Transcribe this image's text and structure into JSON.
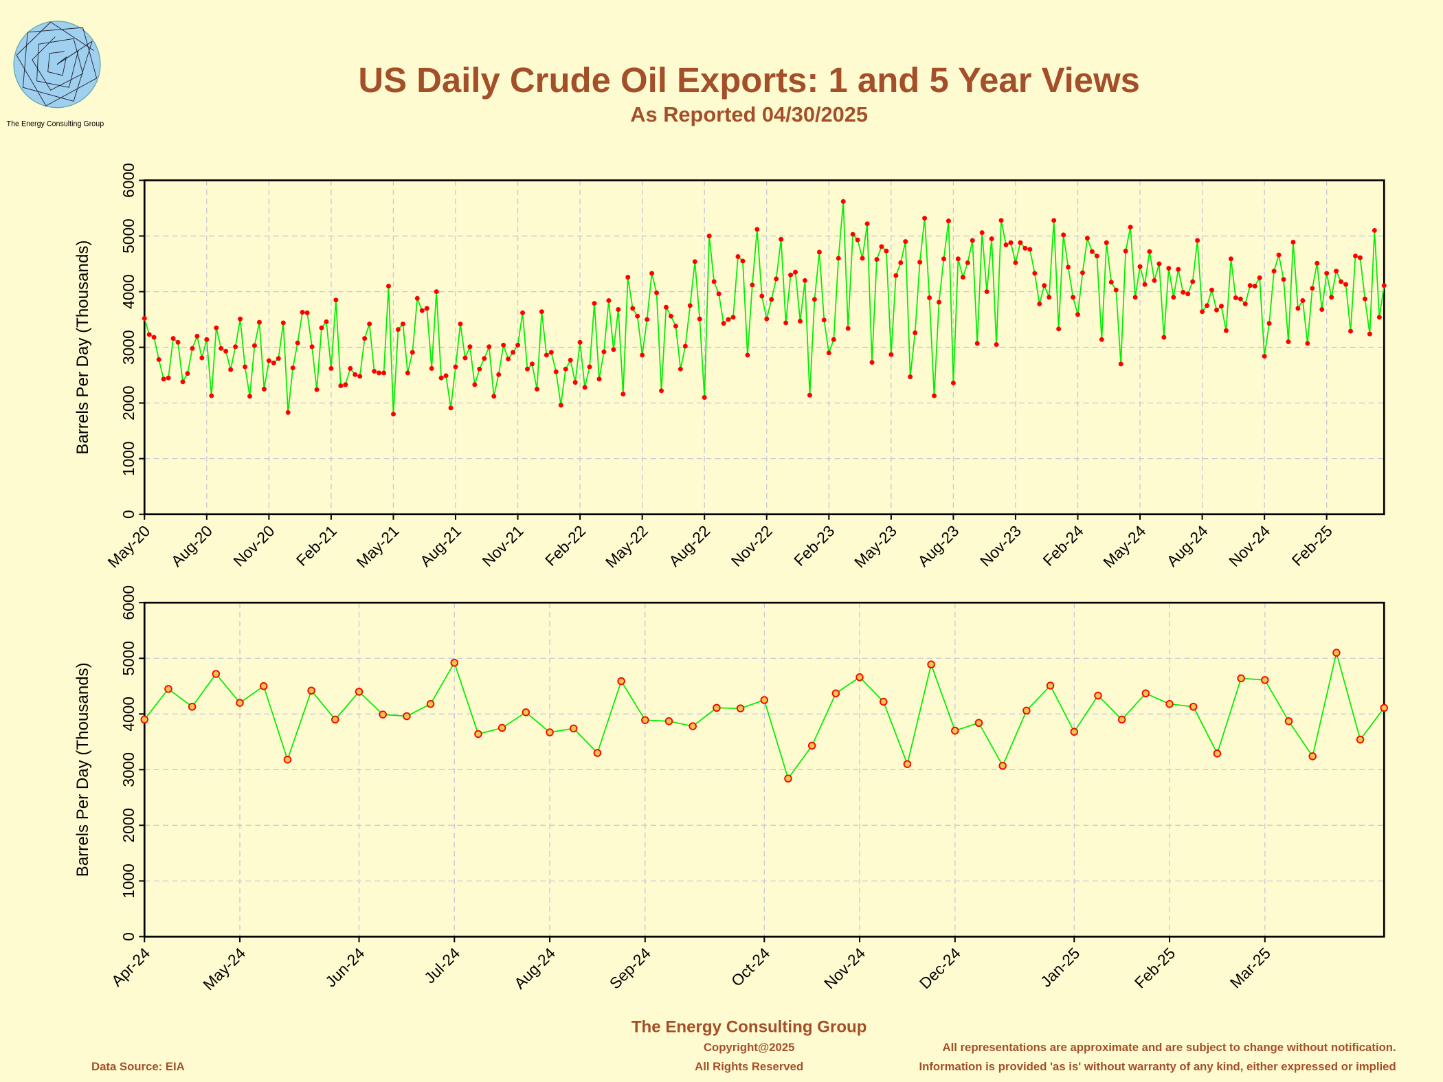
{
  "header": {
    "title": "US Daily Crude Oil Exports: 1 and 5 Year Views",
    "subtitle": "As Reported 04/30/2025",
    "logo_text": "The Energy Consulting Group"
  },
  "chart_data": [
    {
      "type": "line",
      "ylabel": "Barrels Per Day (Thousands)",
      "color": "#00ee00",
      "marker_color": "#ff0000",
      "grid": true,
      "ylim": [
        0,
        6000
      ],
      "yticks": [
        0,
        1000,
        2000,
        3000,
        4000,
        5000,
        6000
      ],
      "categories": [
        "May-20",
        null,
        null,
        null,
        null,
        null,
        null,
        null,
        null,
        null,
        null,
        null,
        null,
        "Aug-20",
        null,
        null,
        null,
        null,
        null,
        null,
        null,
        null,
        null,
        null,
        null,
        null,
        "Nov-20",
        null,
        null,
        null,
        null,
        null,
        null,
        null,
        null,
        null,
        null,
        null,
        null,
        "Feb-21",
        null,
        null,
        null,
        null,
        null,
        null,
        null,
        null,
        null,
        null,
        null,
        null,
        "May-21",
        null,
        null,
        null,
        null,
        null,
        null,
        null,
        null,
        null,
        null,
        null,
        null,
        "Aug-21",
        null,
        null,
        null,
        null,
        null,
        null,
        null,
        null,
        null,
        null,
        null,
        null,
        "Nov-21",
        null,
        null,
        null,
        null,
        null,
        null,
        null,
        null,
        null,
        null,
        null,
        null,
        "Feb-22",
        null,
        null,
        null,
        null,
        null,
        null,
        null,
        null,
        null,
        null,
        null,
        null,
        "May-22",
        null,
        null,
        null,
        null,
        null,
        null,
        null,
        null,
        null,
        null,
        null,
        null,
        "Aug-22",
        null,
        null,
        null,
        null,
        null,
        null,
        null,
        null,
        null,
        null,
        null,
        null,
        "Nov-22",
        null,
        null,
        null,
        null,
        null,
        null,
        null,
        null,
        null,
        null,
        null,
        null,
        "Feb-23",
        null,
        null,
        null,
        null,
        null,
        null,
        null,
        null,
        null,
        null,
        null,
        null,
        "May-23",
        null,
        null,
        null,
        null,
        null,
        null,
        null,
        null,
        null,
        null,
        null,
        null,
        "Aug-23",
        null,
        null,
        null,
        null,
        null,
        null,
        null,
        null,
        null,
        null,
        null,
        null,
        "Nov-23",
        null,
        null,
        null,
        null,
        null,
        null,
        null,
        null,
        null,
        null,
        null,
        null,
        "Feb-24",
        null,
        null,
        null,
        null,
        null,
        null,
        null,
        null,
        null,
        null,
        null,
        null,
        "May-24",
        null,
        null,
        null,
        null,
        null,
        null,
        null,
        null,
        null,
        null,
        null,
        null,
        "Aug-24",
        null,
        null,
        null,
        null,
        null,
        null,
        null,
        null,
        null,
        null,
        null,
        null,
        "Nov-24",
        null,
        null,
        null,
        null,
        null,
        null,
        null,
        null,
        null,
        null,
        null,
        null,
        "Feb-25",
        null,
        null,
        null,
        null,
        null,
        null,
        null,
        null,
        null,
        null,
        null,
        null
      ],
      "values": [
        3520,
        3230,
        3180,
        2780,
        2430,
        2450,
        3160,
        3090,
        2380,
        2530,
        2980,
        3200,
        2810,
        3140,
        2130,
        3350,
        2980,
        2930,
        2600,
        3010,
        3510,
        2650,
        2120,
        3030,
        3450,
        2250,
        2760,
        2720,
        2800,
        3440,
        1830,
        2630,
        3080,
        3630,
        3620,
        3010,
        2240,
        3350,
        3460,
        2620,
        3850,
        2310,
        2330,
        2620,
        2510,
        2480,
        3160,
        3420,
        2570,
        2540,
        2540,
        4100,
        1800,
        3320,
        3420,
        2540,
        2910,
        3880,
        3660,
        3700,
        2620,
        4000,
        2450,
        2490,
        1910,
        2650,
        3420,
        2810,
        3010,
        2330,
        2610,
        2800,
        3010,
        2120,
        2510,
        3040,
        2790,
        2910,
        3040,
        3620,
        2610,
        2700,
        2250,
        3640,
        2860,
        2910,
        2560,
        1960,
        2610,
        2770,
        2370,
        3090,
        2280,
        2650,
        3790,
        2430,
        2920,
        3840,
        2960,
        3680,
        2160,
        4260,
        3700,
        3560,
        2860,
        3500,
        4330,
        3980,
        2220,
        3720,
        3560,
        3380,
        2610,
        3020,
        3750,
        4540,
        3510,
        2100,
        5000,
        4180,
        3960,
        3430,
        3500,
        3540,
        4630,
        4550,
        2860,
        4120,
        5120,
        3920,
        3510,
        3860,
        4230,
        4940,
        3440,
        4300,
        4350,
        3470,
        4200,
        2140,
        3860,
        4710,
        3490,
        2900,
        3140,
        4600,
        5620,
        3340,
        5030,
        4930,
        4600,
        5220,
        2730,
        4580,
        4810,
        4730,
        2870,
        4290,
        4520,
        4900,
        2470,
        3260,
        4530,
        5320,
        3890,
        2130,
        3810,
        4590,
        5270,
        2360,
        4590,
        4260,
        4520,
        4920,
        3070,
        5060,
        4000,
        4950,
        3050,
        5280,
        4840,
        4880,
        4520,
        4880,
        4780,
        4760,
        4330,
        3780,
        4110,
        3900,
        5280,
        3330,
        5020,
        4440,
        3900,
        3590,
        4340,
        4960,
        4720,
        4640,
        3140,
        4880,
        4170,
        4030,
        2700,
        4730,
        5160,
        3900,
        4450,
        4130,
        4720,
        4200,
        4500,
        3180,
        4420,
        3900,
        4400,
        3990,
        3960,
        4180,
        4920,
        3640,
        3750,
        4030,
        3670,
        3740,
        3300,
        4590,
        3890,
        3870,
        3780,
        4110,
        4100,
        4250,
        2840,
        3430,
        4370,
        4660,
        4220,
        3100,
        4890,
        3700,
        3840,
        3070,
        4060,
        4510,
        3680,
        4330,
        3900,
        4370,
        4180,
        4130,
        3290,
        4640,
        4610,
        3870,
        3240,
        5100,
        3540,
        4110
      ]
    },
    {
      "type": "line",
      "ylabel": "Barrels Per Day (Thousands)",
      "color": "#00ee00",
      "marker_color": "#ff0000",
      "grid": true,
      "ylim": [
        0,
        6000
      ],
      "yticks": [
        0,
        1000,
        2000,
        3000,
        4000,
        5000,
        6000
      ],
      "categories": [
        "Apr-24",
        null,
        null,
        null,
        "May-24",
        null,
        null,
        null,
        null,
        "Jun-24",
        null,
        null,
        null,
        "Jul-24",
        null,
        null,
        null,
        "Aug-24",
        null,
        null,
        null,
        "Sep-24",
        null,
        null,
        null,
        null,
        "Oct-24",
        null,
        null,
        null,
        "Nov-24",
        null,
        null,
        null,
        "Dec-24",
        null,
        null,
        null,
        null,
        "Jan-25",
        null,
        null,
        null,
        "Feb-25",
        null,
        null,
        null,
        "Mar-25",
        null,
        null,
        null,
        null,
        null
      ],
      "values": [
        3900,
        4450,
        4130,
        4720,
        4200,
        4500,
        3180,
        4420,
        3900,
        4400,
        3990,
        3960,
        4180,
        4920,
        3640,
        3750,
        4030,
        3670,
        3740,
        3300,
        4590,
        3890,
        3870,
        3780,
        4110,
        4100,
        4250,
        2840,
        3430,
        4370,
        4660,
        4220,
        3100,
        4890,
        3700,
        3840,
        3070,
        4060,
        4510,
        3680,
        4330,
        3900,
        4370,
        4180,
        4130,
        3290,
        4640,
        4610,
        3870,
        3240,
        5100,
        3540,
        4110
      ]
    }
  ],
  "footer": {
    "company": "The Energy Consulting Group",
    "copyright": "Copyright@2025",
    "rights": "All Rights Reserved",
    "source": "Data Source: EIA",
    "disclaimer_1": "All representations are approximate and are subject to change without notification.",
    "disclaimer_2": "Information is provided 'as is' without warranty of any kind, either expressed or implied"
  }
}
